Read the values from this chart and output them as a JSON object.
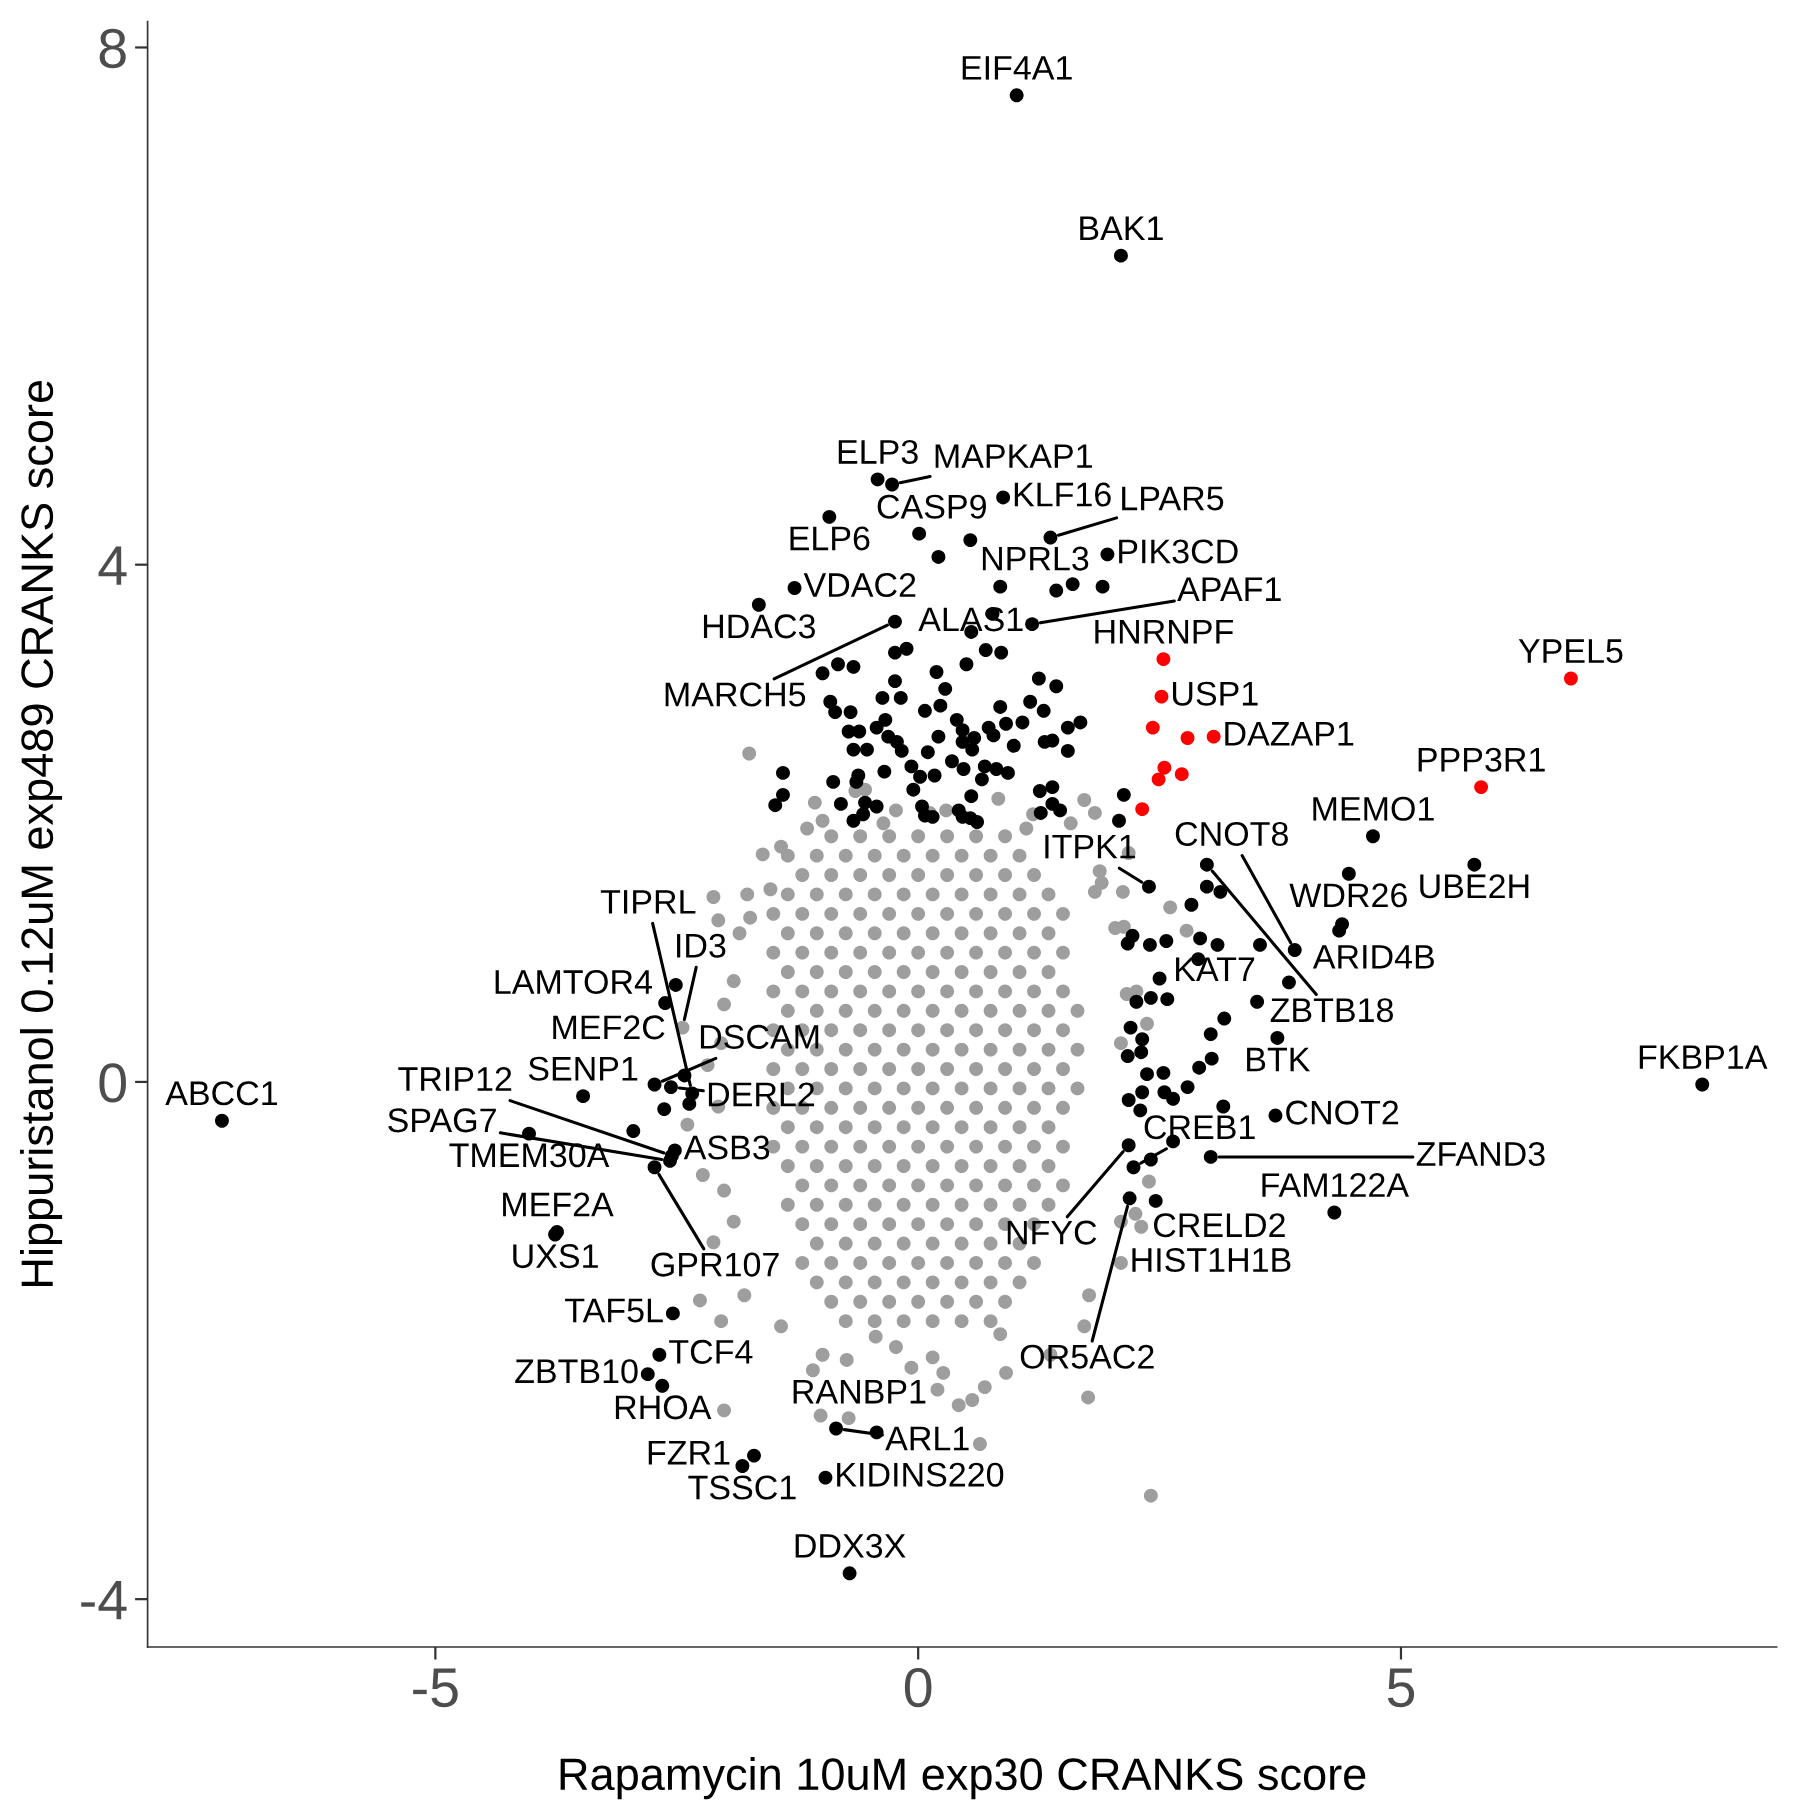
{
  "chart_data": {
    "type": "scatter",
    "xlabel": "Rapamycin 10uM exp30 CRANKS score",
    "ylabel": "Hippuristanol 0.12uM exp489 CRANKS score",
    "xlim": [
      -7.98,
      8.89
    ],
    "ylim": [
      -4.37,
      8.2
    ],
    "xticks": [
      -5,
      0,
      5
    ],
    "yticks": [
      -4,
      0,
      4,
      8
    ],
    "marker": "circle",
    "series": [
      {
        "color": "#9e9e9e",
        "x": [
          -1.75,
          -1.61,
          -1.42,
          -1.15,
          -0.99,
          -2.12,
          -1.77,
          -2.07,
          -1.74,
          -1.85,
          -1.53,
          -1.91,
          -2.01,
          -2.44,
          -2.04,
          -2.18,
          -2.07,
          -2.39,
          -2.23,
          -2.01,
          -2.12,
          -1.91,
          -2.26,
          -2.04,
          -1.8,
          -1.42,
          -1.09,
          -0.99,
          -0.74,
          -2.01,
          -1.01,
          -0.72,
          -0.44,
          -0.23,
          -0.07,
          0.15,
          0.26,
          0.2,
          0.42,
          0.56,
          0.69,
          0.91,
          0.64,
          0.85,
          1.37,
          1.72,
          1.76,
          2.41,
          1.77,
          2.1,
          2.31,
          2.1,
          2.39,
          2.1,
          2.26,
          2.04,
          2.12,
          2.61,
          1.83,
          1.88,
          1.72,
          1.83,
          1.58,
          1.12,
          -0.23,
          0.12,
          0.29,
          -0.36,
          -0.55,
          2.18,
          2.78,
          2.13,
          2.37,
          2.16,
          2.25,
          -1.07,
          -0.65,
          0.83,
          1.19,
          1.9,
          -0.9,
          -0.6,
          -0.3,
          0,
          0.3,
          0.6,
          0.9,
          -1.35,
          -1.05,
          -0.75,
          -0.45,
          -0.15,
          0.15,
          0.45,
          0.75,
          1.05,
          -1.2,
          -0.9,
          -0.6,
          -0.3,
          0,
          0.3,
          0.6,
          0.9,
          1.2,
          -1.35,
          -1.05,
          -0.75,
          -0.45,
          -0.15,
          0.15,
          0.45,
          0.75,
          1.05,
          1.35,
          -1.5,
          -1.2,
          -0.9,
          -0.6,
          -0.3,
          0,
          0.3,
          0.6,
          0.9,
          1.2,
          1.5,
          -1.35,
          -1.05,
          -0.75,
          -0.45,
          -0.15,
          0.15,
          0.45,
          0.75,
          1.05,
          1.35,
          -1.5,
          -1.2,
          -0.9,
          -0.6,
          -0.3,
          0,
          0.3,
          0.6,
          0.9,
          1.2,
          1.5,
          -1.35,
          -1.05,
          -0.75,
          -0.45,
          -0.15,
          0.15,
          0.45,
          0.75,
          1.05,
          1.35,
          -1.5,
          -1.2,
          -0.9,
          -0.6,
          -0.3,
          0,
          0.3,
          0.6,
          0.9,
          1.2,
          1.5,
          -1.35,
          -1.05,
          -0.75,
          -0.45,
          -0.15,
          0.15,
          0.45,
          0.75,
          1.05,
          1.35,
          1.65,
          -1.5,
          -1.2,
          -0.9,
          -0.6,
          -0.3,
          0,
          0.3,
          0.6,
          0.9,
          1.2,
          1.5,
          -1.35,
          -1.05,
          -0.75,
          -0.45,
          -0.15,
          0.15,
          0.45,
          0.75,
          1.05,
          1.35,
          1.65,
          -1.5,
          -1.2,
          -0.9,
          -0.6,
          -0.3,
          0,
          0.3,
          0.6,
          0.9,
          1.2,
          1.5,
          -1.35,
          -1.05,
          -0.75,
          -0.45,
          -0.15,
          0.15,
          0.45,
          0.75,
          1.05,
          1.35,
          1.65,
          -1.5,
          -1.2,
          -0.9,
          -0.6,
          -0.3,
          0,
          0.3,
          0.6,
          0.9,
          1.2,
          1.5,
          -1.35,
          -1.05,
          -0.75,
          -0.45,
          -0.15,
          0.15,
          0.45,
          0.75,
          1.05,
          1.35,
          -1.5,
          -1.2,
          -0.9,
          -0.6,
          -0.3,
          0,
          0.3,
          0.6,
          0.9,
          1.2,
          1.5,
          -1.35,
          -1.05,
          -0.75,
          -0.45,
          -0.15,
          0.15,
          0.45,
          0.75,
          1.05,
          1.35,
          -1.2,
          -0.9,
          -0.6,
          -0.3,
          0,
          0.3,
          0.6,
          0.9,
          1.2,
          1.5,
          -1.35,
          -1.05,
          -0.75,
          -0.45,
          -0.15,
          0.15,
          0.45,
          0.75,
          1.05,
          1.35,
          -1.2,
          -0.9,
          -0.6,
          -0.3,
          0,
          0.3,
          0.6,
          0.9,
          1.2,
          -1.05,
          -0.75,
          -0.45,
          -0.15,
          0.15,
          0.45,
          0.75,
          1.05,
          -1.2,
          -0.9,
          -0.6,
          -0.3,
          0,
          0.3,
          0.6,
          0.9,
          1.2,
          -1.05,
          -0.75,
          -0.45,
          -0.15,
          0.15,
          0.45,
          0.75,
          1.05,
          -0.9,
          -0.6,
          -0.3,
          0,
          0.3,
          0.6,
          0.9,
          -0.75,
          -0.45,
          -0.15,
          0.15,
          0.45,
          0.75
        ],
        "values": [
          2.54,
          1.76,
          1.82,
          1.96,
          2.02,
          1.43,
          1.45,
          1.25,
          1.27,
          1.15,
          1.49,
          0.78,
          0.6,
          0.42,
          0.3,
          0.13,
          -0.19,
          -0.33,
          -0.72,
          -0.84,
          -1.24,
          -1.08,
          -1.69,
          -1.85,
          -1.65,
          -1.89,
          -2.23,
          -2.11,
          -2.15,
          -2.54,
          -2.58,
          -2.6,
          -1.97,
          -2.05,
          -2.21,
          -2.13,
          -2.25,
          -2.38,
          -2.5,
          -2.46,
          -2.36,
          -2.25,
          -2.8,
          -1.95,
          -2.11,
          -1.89,
          -2.44,
          -3.2,
          -1.65,
          -1.08,
          -1.12,
          -1.4,
          -0.77,
          0.3,
          0.7,
          1.19,
          1.47,
          1.35,
          1.47,
          1.63,
          2.18,
          2.08,
          2.0,
          1.96,
          2.1,
          2.08,
          2.1,
          2.0,
          2.26,
          1.77,
          1.17,
          1.2,
          0.45,
          0.68,
          -1.02,
          2.16,
          2.25,
          2.19,
          2.07,
          1.54,
          1.9,
          1.9,
          1.9,
          1.9,
          1.9,
          1.9,
          1.9,
          1.75,
          1.75,
          1.75,
          1.75,
          1.75,
          1.75,
          1.75,
          1.75,
          1.75,
          1.6,
          1.6,
          1.6,
          1.6,
          1.6,
          1.6,
          1.6,
          1.6,
          1.6,
          1.45,
          1.45,
          1.45,
          1.45,
          1.45,
          1.45,
          1.45,
          1.45,
          1.45,
          1.45,
          1.3,
          1.3,
          1.3,
          1.3,
          1.3,
          1.3,
          1.3,
          1.3,
          1.3,
          1.3,
          1.3,
          1.15,
          1.15,
          1.15,
          1.15,
          1.15,
          1.15,
          1.15,
          1.15,
          1.15,
          1.15,
          1,
          1,
          1,
          1,
          1,
          1,
          1,
          1,
          1,
          1,
          1,
          0.85,
          0.85,
          0.85,
          0.85,
          0.85,
          0.85,
          0.85,
          0.85,
          0.85,
          0.85,
          0.7,
          0.7,
          0.7,
          0.7,
          0.7,
          0.7,
          0.7,
          0.7,
          0.7,
          0.7,
          0.7,
          0.55,
          0.55,
          0.55,
          0.55,
          0.55,
          0.55,
          0.55,
          0.55,
          0.55,
          0.55,
          0.55,
          0.4,
          0.4,
          0.4,
          0.4,
          0.4,
          0.4,
          0.4,
          0.4,
          0.4,
          0.4,
          0.4,
          0.25,
          0.25,
          0.25,
          0.25,
          0.25,
          0.25,
          0.25,
          0.25,
          0.25,
          0.25,
          0.25,
          0.1,
          0.1,
          0.1,
          0.1,
          0.1,
          0.1,
          0.1,
          0.1,
          0.1,
          0.1,
          0.1,
          -0.05,
          -0.05,
          -0.05,
          -0.05,
          -0.05,
          -0.05,
          -0.05,
          -0.05,
          -0.05,
          -0.05,
          -0.05,
          -0.2,
          -0.2,
          -0.2,
          -0.2,
          -0.2,
          -0.2,
          -0.2,
          -0.2,
          -0.2,
          -0.2,
          -0.2,
          -0.35,
          -0.35,
          -0.35,
          -0.35,
          -0.35,
          -0.35,
          -0.35,
          -0.35,
          -0.35,
          -0.35,
          -0.5,
          -0.5,
          -0.5,
          -0.5,
          -0.5,
          -0.5,
          -0.5,
          -0.5,
          -0.5,
          -0.5,
          -0.5,
          -0.65,
          -0.65,
          -0.65,
          -0.65,
          -0.65,
          -0.65,
          -0.65,
          -0.65,
          -0.65,
          -0.65,
          -0.8,
          -0.8,
          -0.8,
          -0.8,
          -0.8,
          -0.8,
          -0.8,
          -0.8,
          -0.8,
          -0.8,
          -0.95,
          -0.95,
          -0.95,
          -0.95,
          -0.95,
          -0.95,
          -0.95,
          -0.95,
          -0.95,
          -0.95,
          -1.1,
          -1.1,
          -1.1,
          -1.1,
          -1.1,
          -1.1,
          -1.1,
          -1.1,
          -1.1,
          -1.25,
          -1.25,
          -1.25,
          -1.25,
          -1.25,
          -1.25,
          -1.25,
          -1.25,
          -1.4,
          -1.4,
          -1.4,
          -1.4,
          -1.4,
          -1.4,
          -1.4,
          -1.4,
          -1.4,
          -1.55,
          -1.55,
          -1.55,
          -1.55,
          -1.55,
          -1.55,
          -1.55,
          -1.55,
          -1.7,
          -1.7,
          -1.7,
          -1.7,
          -1.7,
          -1.7,
          -1.7,
          -1.85,
          -1.85,
          -1.85,
          -1.85,
          -1.85,
          -1.85
        ]
      },
      {
        "color": "#000000",
        "x": [
          1.02,
          2.1,
          -0.27,
          -0.42,
          0.54,
          0.88,
          1.37,
          -0.92,
          0.01,
          0.85,
          1.96,
          -1.28,
          -0.24,
          -1.65,
          1.18,
          2.99,
          4.71,
          5.76,
          4.46,
          2.39,
          4.39,
          3.54,
          3.9,
          -2.51,
          -2.62,
          -2.73,
          -2.56,
          -2.34,
          -7.21,
          -3.47,
          3.72,
          3.7,
          8.12,
          2.18,
          2.23,
          3.03,
          -4.03,
          -2.73,
          -2.52,
          -2.55,
          -2.57,
          2.19,
          2.46,
          -3.74,
          -3.76,
          4.31,
          -2.54,
          -2.68,
          -2.8,
          -2.65,
          -0.85,
          -1.7,
          -0.43,
          -1.82,
          -0.96,
          -0.71,
          0.21,
          1.43,
          1.6,
          1.91,
          0.77,
          0.55,
          -0.12,
          -0.24,
          0.7,
          0.86,
          0.5,
          -0.99,
          -0.83,
          -0.67,
          -0.24,
          0.19,
          0.28,
          1.25,
          1.43,
          -0.91,
          -0.86,
          -0.7,
          -0.37,
          -0.18,
          0.07,
          0.23,
          0.85,
          1.16,
          1.3,
          -0.72,
          -0.61,
          -0.43,
          -0.34,
          -0.31,
          0.4,
          0.46,
          0.58,
          0.73,
          0.78,
          0.91,
          1.08,
          1.55,
          1.68,
          -0.67,
          -0.53,
          -0.22,
          -0.17,
          0.1,
          0.21,
          0.46,
          0.56,
          0.99,
          1.31,
          1.39,
          1.55,
          -1.4,
          -1.4,
          -1.48,
          -0.88,
          -0.8,
          -0.62,
          -0.64,
          -0.35,
          -0.07,
          0.02,
          0.17,
          -0.05,
          0.35,
          0.47,
          0.69,
          0.81,
          0.93,
          0.66,
          0.55,
          -0.55,
          -0.43,
          -0.67,
          -0.57,
          0.04,
          0.07,
          0.15,
          0.42,
          0.46,
          0.54,
          0.61,
          1.26,
          1.39,
          1.39,
          1.47,
          1.27,
          2.13,
          2.08,
          2.99,
          3.13,
          2.83,
          4.36,
          3.84,
          2.92,
          3.1,
          2.9,
          2.17,
          2.4,
          2.57,
          2.22,
          2.5,
          3.51,
          3.17,
          3.03,
          3.04,
          2.91,
          2.79,
          3.16,
          2.64,
          2.26,
          2.41,
          2.58,
          2.2,
          2.32,
          2.17,
          2.31,
          2.37,
          2.54,
          2.18,
          2.32,
          2.55,
          2.64,
          2.3,
          2.41,
          -2.42,
          -2.63,
          -2.37,
          -2.95
        ],
        "values": [
          7.63,
          6.39,
          4.62,
          4.66,
          4.19,
          4.52,
          4.21,
          4.37,
          4.24,
          3.83,
          4.08,
          3.82,
          3.56,
          3.69,
          3.54,
          1.68,
          1.9,
          1.68,
          1.61,
          1.51,
          1.22,
          1.06,
          1.02,
          0.75,
          0.61,
          -0.02,
          -0.04,
          -0.09,
          -0.3,
          -0.11,
          0.34,
          -0.26,
          -0.02,
          -0.49,
          -0.66,
          -0.58,
          -0.4,
          -0.66,
          -0.53,
          -0.57,
          -0.61,
          -0.9,
          -0.92,
          -1.16,
          -1.18,
          -1.01,
          -1.79,
          -2.11,
          -2.26,
          -2.35,
          -2.68,
          -2.89,
          -2.71,
          -2.97,
          -3.06,
          -3.8,
          4.06,
          3.8,
          3.85,
          3.83,
          3.62,
          3.48,
          3.35,
          3.32,
          3.34,
          3.32,
          3.23,
          3.16,
          3.23,
          3.21,
          3.1,
          3.17,
          3.04,
          3.12,
          3.06,
          2.94,
          2.86,
          2.86,
          2.97,
          2.97,
          2.87,
          2.91,
          2.9,
          2.94,
          2.87,
          2.71,
          2.71,
          2.74,
          2.8,
          2.67,
          2.8,
          2.72,
          2.66,
          2.74,
          2.68,
          2.77,
          2.78,
          2.74,
          2.78,
          2.57,
          2.57,
          2.63,
          2.56,
          2.55,
          2.67,
          2.63,
          2.57,
          2.6,
          2.63,
          2.64,
          2.56,
          2.39,
          2.22,
          2.14,
          2.32,
          2.15,
          2.37,
          2.32,
          2.4,
          2.44,
          2.36,
          2.37,
          2.26,
          2.48,
          2.42,
          2.44,
          2.42,
          2.39,
          2.34,
          2.21,
          2.16,
          2.13,
          2.02,
          2.07,
          2.13,
          2.06,
          2.05,
          2.1,
          2.05,
          2.04,
          2.01,
          2.25,
          2.28,
          2.15,
          2.1,
          2.08,
          2.22,
          2.02,
          1.51,
          1.47,
          1.37,
          1.17,
          0.77,
          1.11,
          1.06,
          0.95,
          1.07,
          1.06,
          1.09,
          1.13,
          0.8,
          0.62,
          0.49,
          0.37,
          0.18,
          0.11,
          -0.04,
          -0.19,
          -0.46,
          0.62,
          0.65,
          0.64,
          0.42,
          0.33,
          0.2,
          0.23,
          0.06,
          0.07,
          -0.14,
          -0.08,
          -0.08,
          -0.13,
          -0.22,
          -0.6,
          0.05,
          -0.21,
          -0.17,
          -0.38
        ]
      },
      {
        "color": "#ff0000",
        "x": [
          2.54,
          2.52,
          2.43,
          2.79,
          3.06,
          2.55,
          2.73,
          2.49,
          2.32,
          6.76,
          5.83
        ],
        "values": [
          3.27,
          2.98,
          2.74,
          2.66,
          2.67,
          2.43,
          2.38,
          2.34,
          2.11,
          3.12,
          2.28
        ]
      }
    ],
    "annotations": [
      {
        "text": "EIF4A1",
        "x": 1.02,
        "y": 7.63
      },
      {
        "text": "BAK1",
        "x": 2.1,
        "y": 6.39
      },
      {
        "text": "MAPKAP1",
        "x": -0.27,
        "y": 4.62
      },
      {
        "text": "ELP3",
        "x": -0.42,
        "y": 4.66
      },
      {
        "text": "NPRL3",
        "x": 0.54,
        "y": 4.19
      },
      {
        "text": "KLF16",
        "x": 0.88,
        "y": 4.52
      },
      {
        "text": "LPAR5",
        "x": 1.37,
        "y": 4.21
      },
      {
        "text": "ELP6",
        "x": -0.92,
        "y": 4.37
      },
      {
        "text": "CASP9",
        "x": 0.01,
        "y": 4.24
      },
      {
        "text": "ALAS1",
        "x": 0.85,
        "y": 3.83
      },
      {
        "text": "PIK3CD",
        "x": 1.96,
        "y": 4.08
      },
      {
        "text": "VDAC2",
        "x": -1.28,
        "y": 3.82
      },
      {
        "text": "MARCH5",
        "x": -0.24,
        "y": 3.56
      },
      {
        "text": "HDAC3",
        "x": -1.65,
        "y": 3.69
      },
      {
        "text": "APAF1",
        "x": 1.18,
        "y": 3.54
      },
      {
        "text": "HNRNPF",
        "x": 2.54,
        "y": 3.27
      },
      {
        "text": "USP1",
        "x": 2.52,
        "y": 2.98
      },
      {
        "text": "DAZAP1",
        "x": 3.06,
        "y": 2.67
      },
      {
        "text": "YPEL5",
        "x": 6.76,
        "y": 3.12
      },
      {
        "text": "PPP3R1",
        "x": 5.83,
        "y": 2.28
      },
      {
        "text": "ZBTB18",
        "x": 2.99,
        "y": 1.68
      },
      {
        "text": "MEMO1",
        "x": 4.71,
        "y": 1.9
      },
      {
        "text": "UBE2H",
        "x": 5.76,
        "y": 1.68
      },
      {
        "text": "WDR26",
        "x": 4.46,
        "y": 1.61
      },
      {
        "text": "ITPK1",
        "x": 2.39,
        "y": 1.51
      },
      {
        "text": "ARID4B",
        "x": 4.39,
        "y": 1.22
      },
      {
        "text": "KAT7",
        "x": 3.54,
        "y": 1.06
      },
      {
        "text": "CNOT8",
        "x": 3.9,
        "y": 1.02
      },
      {
        "text": "LAMTOR4",
        "x": -2.51,
        "y": 0.75
      },
      {
        "text": "MEF2C",
        "x": -2.62,
        "y": 0.61
      },
      {
        "text": "ID3",
        "x": -2.44,
        "y": 0.42
      },
      {
        "text": "DSCAM",
        "x": -2.73,
        "y": -0.02
      },
      {
        "text": "DERL2",
        "x": -2.56,
        "y": -0.04
      },
      {
        "text": "TIPRL",
        "x": -2.34,
        "y": -0.09
      },
      {
        "text": "ABCC1",
        "x": -7.21,
        "y": -0.3
      },
      {
        "text": "SENP1",
        "x": -3.47,
        "y": -0.11
      },
      {
        "text": "BTK",
        "x": 3.72,
        "y": 0.34
      },
      {
        "text": "CNOT2",
        "x": 3.7,
        "y": -0.26
      },
      {
        "text": "FKBP1A",
        "x": 8.12,
        "y": -0.02
      },
      {
        "text": "NFYC",
        "x": 2.18,
        "y": -0.49
      },
      {
        "text": "CREB1",
        "x": 2.23,
        "y": -0.66
      },
      {
        "text": "ZFAND3",
        "x": 3.03,
        "y": -0.58
      },
      {
        "text": "TMEM30A",
        "x": -4.03,
        "y": -0.4
      },
      {
        "text": "GPR107",
        "x": -2.73,
        "y": -0.66
      },
      {
        "text": "ASB3",
        "x": -2.52,
        "y": -0.53
      },
      {
        "text": "TRIP12",
        "x": -2.55,
        "y": -0.57
      },
      {
        "text": "SPAG7",
        "x": -2.57,
        "y": -0.61
      },
      {
        "text": "OR5AC2",
        "x": 2.19,
        "y": -0.9
      },
      {
        "text": "CRELD2",
        "x": 2.46,
        "y": -0.92
      },
      {
        "text": "MEF2A",
        "x": -3.74,
        "y": -1.16
      },
      {
        "text": "UXS1",
        "x": -3.76,
        "y": -1.18
      },
      {
        "text": "HIST1H1B",
        "x": 2.1,
        "y": -1.4
      },
      {
        "text": "FAM122A",
        "x": 4.31,
        "y": -1.01
      },
      {
        "text": "TAF5L",
        "x": -2.54,
        "y": -1.79
      },
      {
        "text": "TCF4",
        "x": -2.68,
        "y": -2.11
      },
      {
        "text": "ZBTB10",
        "x": -2.8,
        "y": -2.26
      },
      {
        "text": "RHOA",
        "x": -2.65,
        "y": -2.35
      },
      {
        "text": "ARL1",
        "x": -0.85,
        "y": -2.68
      },
      {
        "text": "FZR1",
        "x": -1.7,
        "y": -2.89
      },
      {
        "text": "RANBP1",
        "x": -0.43,
        "y": -2.71
      },
      {
        "text": "TSSC1",
        "x": -1.82,
        "y": -2.97
      },
      {
        "text": "KIDINS220",
        "x": -0.96,
        "y": -3.06
      },
      {
        "text": "DDX3X",
        "x": -0.71,
        "y": -3.8
      }
    ]
  }
}
